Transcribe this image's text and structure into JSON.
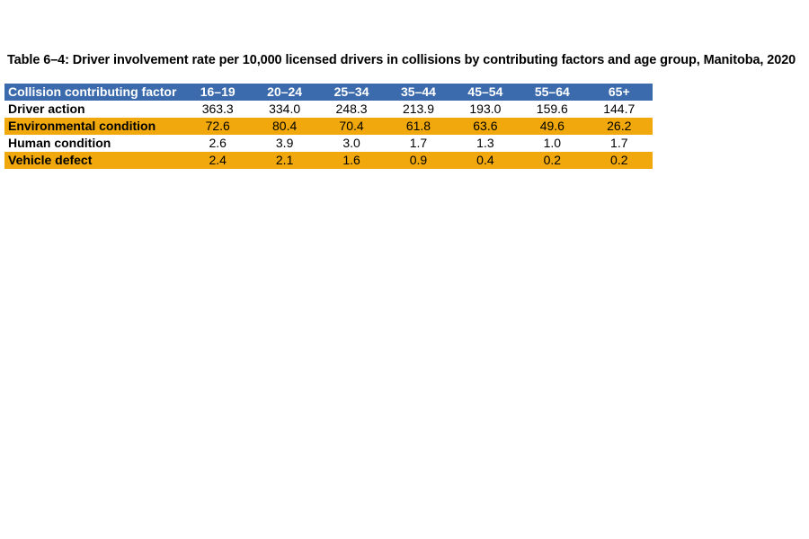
{
  "title": "Table 6–4: Driver involvement rate per 10,000 licensed drivers in collisions by contributing factors and age group, Manitoba, 2020",
  "table": {
    "columns": [
      "Collision contributing factor",
      "16–19",
      "20–24",
      "25–34",
      "35–44",
      "45–54",
      "55–64",
      "65+"
    ],
    "rows": [
      {
        "label": "Driver action",
        "values": [
          "363.3",
          "334.0",
          "248.3",
          "213.9",
          "193.0",
          "159.6",
          "144.7"
        ]
      },
      {
        "label": "Environmental condition",
        "values": [
          "72.6",
          "80.4",
          "70.4",
          "61.8",
          "63.6",
          "49.6",
          "26.2"
        ]
      },
      {
        "label": "Human condition",
        "values": [
          "2.6",
          "3.9",
          "3.0",
          "1.7",
          "1.3",
          "1.0",
          "1.7"
        ]
      },
      {
        "label": "Vehicle defect",
        "values": [
          "2.4",
          "2.1",
          "1.6",
          "0.9",
          "0.4",
          "0.2",
          "0.2"
        ]
      }
    ]
  },
  "colors": {
    "page_background": "#FFFFFF",
    "header_background": "#3B6BAC",
    "header_text": "#FFFFFF",
    "band_background": "#F0A80D",
    "body_text": "#000000"
  },
  "chart_data": {
    "type": "table",
    "title": "Table 6–4: Driver involvement rate per 10,000 licensed drivers in collisions by contributing factors and age group, Manitoba, 2020",
    "categories": [
      "16–19",
      "20–24",
      "25–34",
      "35–44",
      "45–54",
      "55–64",
      "65+"
    ],
    "series": [
      {
        "name": "Driver action",
        "values": [
          363.3,
          334.0,
          248.3,
          213.9,
          193.0,
          159.6,
          144.7
        ]
      },
      {
        "name": "Environmental condition",
        "values": [
          72.6,
          80.4,
          70.4,
          61.8,
          63.6,
          49.6,
          26.2
        ]
      },
      {
        "name": "Human condition",
        "values": [
          2.6,
          3.9,
          3.0,
          1.7,
          1.3,
          1.0,
          1.7
        ]
      },
      {
        "name": "Vehicle defect",
        "values": [
          2.4,
          2.1,
          1.6,
          0.9,
          0.4,
          0.2,
          0.2
        ]
      }
    ]
  }
}
